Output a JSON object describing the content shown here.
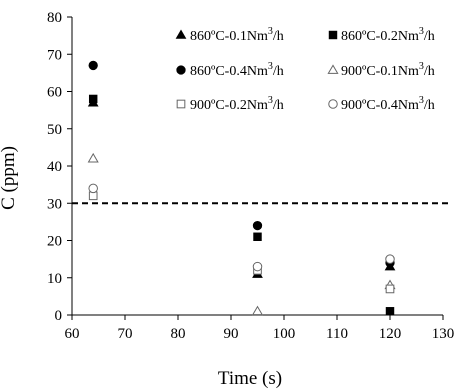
{
  "chart_data": {
    "type": "scatter",
    "title": "",
    "xlabel": "Time (s)",
    "ylabel": "C (ppm)",
    "xlim": [
      60,
      130
    ],
    "ylim": [
      0,
      80
    ],
    "x_ticks": [
      60,
      70,
      80,
      90,
      100,
      110,
      120,
      130
    ],
    "y_ticks": [
      0,
      10,
      20,
      30,
      40,
      50,
      60,
      70,
      80
    ],
    "grid": false,
    "legend_position": "top-right",
    "reference_line": {
      "y": 30,
      "style": "dashed"
    },
    "x": [
      64,
      95,
      120
    ],
    "series": [
      {
        "name": "860ºC-0.1Nm3/h",
        "marker": "filled-triangle",
        "values": [
          57,
          11,
          13
        ]
      },
      {
        "name": "860ºC-0.2Nm3/h",
        "marker": "filled-square",
        "values": [
          58,
          21,
          1
        ]
      },
      {
        "name": "860ºC-0.4Nm3/h",
        "marker": "filled-circle",
        "values": [
          67,
          24,
          14
        ]
      },
      {
        "name": "900ºC-0.1Nm3/h",
        "marker": "open-triangle",
        "values": [
          42,
          1,
          8
        ]
      },
      {
        "name": "900ºC-0.2Nm3/h",
        "marker": "open-square",
        "values": [
          32,
          12,
          7
        ]
      },
      {
        "name": "900ºC-0.4Nm3/h",
        "marker": "open-circle",
        "values": [
          34,
          13,
          15
        ]
      }
    ]
  }
}
